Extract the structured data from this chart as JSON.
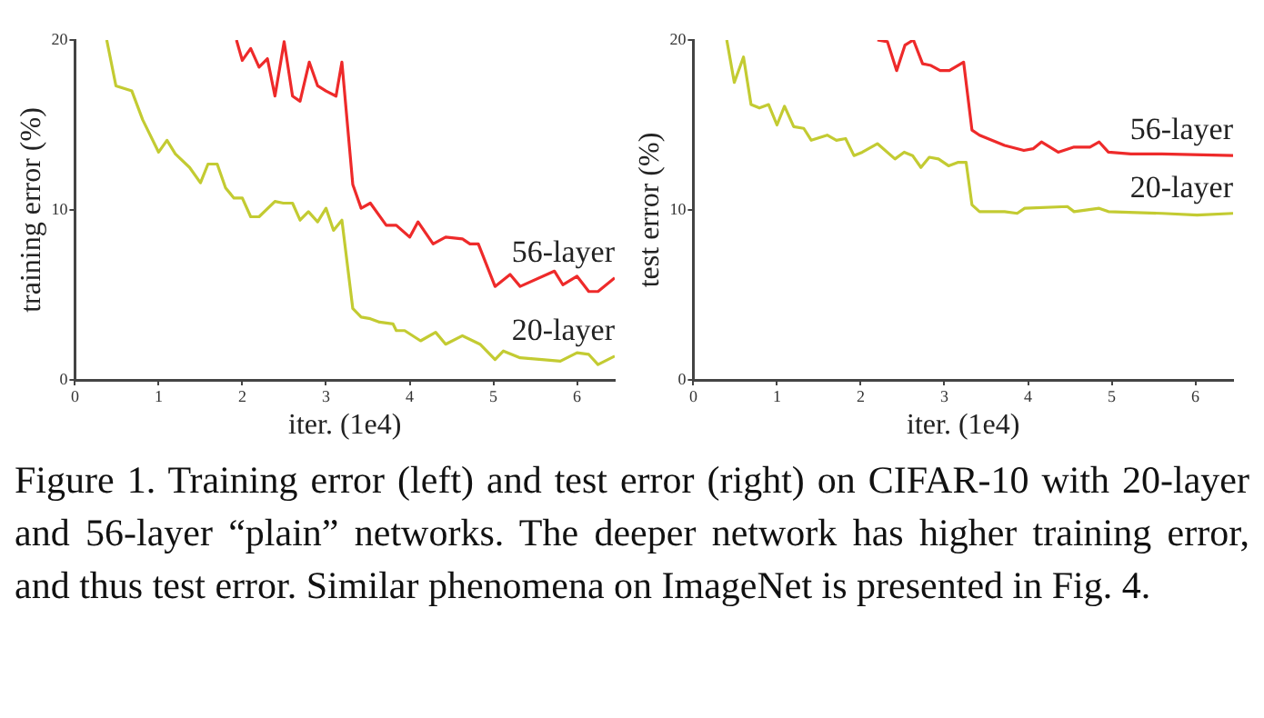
{
  "chart_data": [
    {
      "type": "line",
      "xlabel": "iter. (1e4)",
      "ylabel": "training error (%)",
      "xlim": [
        0,
        6.45
      ],
      "xticks": [
        0,
        1,
        2,
        3,
        4,
        5,
        6
      ],
      "ylim": [
        0,
        20
      ],
      "yticks": [
        0,
        10,
        20
      ],
      "legend": false,
      "series": [
        {
          "name": "56-layer",
          "color": "#ee2a2a",
          "x": [
            1.93,
            2.0,
            2.1,
            2.2,
            2.3,
            2.39,
            2.5,
            2.6,
            2.69,
            2.8,
            2.9,
            3.0,
            3.12,
            3.19,
            3.32,
            3.42,
            3.53,
            3.72,
            3.84,
            4.0,
            4.1,
            4.28,
            4.43,
            4.63,
            4.72,
            4.82,
            5.02,
            5.2,
            5.32,
            5.73,
            5.83,
            6.0,
            6.14,
            6.25,
            6.45
          ],
          "values": [
            20,
            18.8,
            19.5,
            18.4,
            18.9,
            16.7,
            19.9,
            16.7,
            16.4,
            18.7,
            17.3,
            17.0,
            16.7,
            18.7,
            11.5,
            10.1,
            10.4,
            9.1,
            9.1,
            8.4,
            9.3,
            8.0,
            8.4,
            8.3,
            8.0,
            8.0,
            5.5,
            6.2,
            5.5,
            6.4,
            5.6,
            6.1,
            5.2,
            5.2,
            6.0
          ]
        },
        {
          "name": "20-layer",
          "color": "#c3cb32",
          "x": [
            0.38,
            0.49,
            0.68,
            0.81,
            1.0,
            1.1,
            1.2,
            1.37,
            1.5,
            1.59,
            1.7,
            1.8,
            1.9,
            2.0,
            2.1,
            2.2,
            2.39,
            2.49,
            2.6,
            2.69,
            2.79,
            2.9,
            3.0,
            3.09,
            3.19,
            3.32,
            3.42,
            3.53,
            3.64,
            3.8,
            3.84,
            3.94,
            4.13,
            4.31,
            4.43,
            4.63,
            4.84,
            5.02,
            5.12,
            5.32,
            5.58,
            5.8,
            6.0,
            6.14,
            6.25,
            6.45
          ],
          "values": [
            20,
            17.3,
            17.0,
            15.3,
            13.4,
            14.1,
            13.3,
            12.5,
            11.6,
            12.7,
            12.7,
            11.3,
            10.7,
            10.7,
            9.6,
            9.6,
            10.5,
            10.4,
            10.4,
            9.4,
            9.9,
            9.3,
            10.1,
            8.8,
            9.4,
            4.2,
            3.7,
            3.6,
            3.4,
            3.3,
            2.9,
            2.9,
            2.3,
            2.8,
            2.1,
            2.6,
            2.1,
            1.2,
            1.7,
            1.3,
            1.2,
            1.1,
            1.6,
            1.5,
            0.9,
            1.4
          ]
        }
      ],
      "annotations": [
        "Figure 1. Training error (left) and test error (right) on CIFAR-10 with 20-layer and 56-layer “plain” networks. The deeper network has higher training error, and thus test error. Similar phenomena on ImageNet is presented in Fig. 4."
      ]
    },
    {
      "type": "line",
      "xlabel": "iter. (1e4)",
      "ylabel": "test error (%)",
      "xlim": [
        0,
        6.45
      ],
      "xticks": [
        0,
        1,
        2,
        3,
        4,
        5,
        6
      ],
      "ylim": [
        0,
        20
      ],
      "yticks": [
        0,
        10,
        20
      ],
      "legend": false,
      "series": [
        {
          "name": "56-layer",
          "color": "#ee2a2a",
          "x": [
            2.2,
            2.32,
            2.43,
            2.53,
            2.63,
            2.74,
            2.84,
            2.95,
            3.06,
            3.23,
            3.33,
            3.42,
            3.72,
            3.95,
            4.06,
            4.16,
            4.36,
            4.55,
            4.74,
            4.85,
            4.96,
            5.23,
            5.6,
            6.45
          ],
          "values": [
            20,
            19.9,
            18.2,
            19.7,
            20,
            18.6,
            18.5,
            18.2,
            18.2,
            18.7,
            14.7,
            14.4,
            13.8,
            13.5,
            13.6,
            14.0,
            13.4,
            13.7,
            13.7,
            14.0,
            13.4,
            13.3,
            13.3,
            13.2
          ]
        },
        {
          "name": "20-layer",
          "color": "#c3cb32",
          "x": [
            0.4,
            0.49,
            0.6,
            0.69,
            0.79,
            0.9,
            1.0,
            1.09,
            1.2,
            1.32,
            1.41,
            1.6,
            1.71,
            1.82,
            1.92,
            2.02,
            2.2,
            2.41,
            2.52,
            2.62,
            2.72,
            2.82,
            2.93,
            3.05,
            3.16,
            3.26,
            3.33,
            3.42,
            3.72,
            3.87,
            3.96,
            4.47,
            4.55,
            4.85,
            4.96,
            5.6,
            6.02,
            6.45
          ],
          "values": [
            20,
            17.5,
            19.0,
            16.2,
            16.0,
            16.2,
            15.0,
            16.1,
            14.9,
            14.8,
            14.1,
            14.4,
            14.1,
            14.2,
            13.2,
            13.4,
            13.9,
            13.0,
            13.4,
            13.2,
            12.5,
            13.1,
            13.0,
            12.6,
            12.8,
            12.8,
            10.3,
            9.9,
            9.9,
            9.8,
            10.1,
            10.2,
            9.9,
            10.1,
            9.9,
            9.8,
            9.7,
            9.8
          ]
        }
      ]
    }
  ]
}
